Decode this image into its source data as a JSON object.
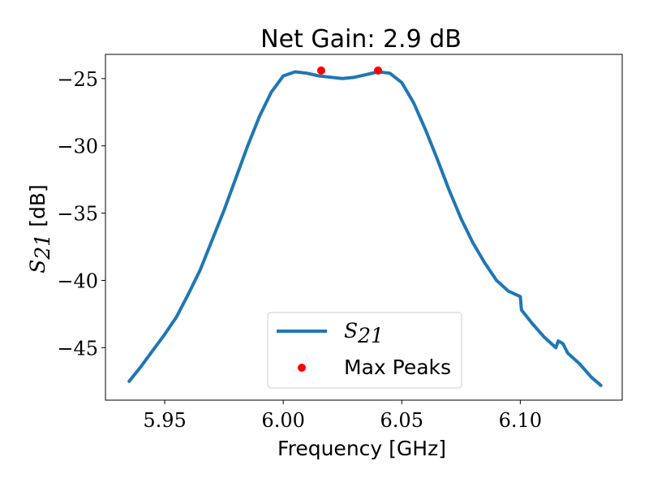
{
  "chart_data": {
    "type": "line",
    "title": "Net Gain: 2.9 dB",
    "xlabel": "Frequency [GHz]",
    "ylabel_symbol": "S",
    "ylabel_subscript": "21",
    "ylabel_unit": "[dB]",
    "xlim": [
      5.925,
      6.143
    ],
    "ylim": [
      -48.9,
      -23.2
    ],
    "x_ticks": [
      5.95,
      6.0,
      6.05,
      6.1
    ],
    "x_tick_labels": [
      "5.95",
      "6.00",
      "6.05",
      "6.10"
    ],
    "y_ticks": [
      -25,
      -30,
      -35,
      -40,
      -45
    ],
    "y_tick_labels": [
      "−25",
      "−30",
      "−35",
      "−40",
      "−45"
    ],
    "grid": false,
    "legend_position": "lower-center",
    "series": [
      {
        "name_symbol": "S",
        "name_subscript": "21",
        "color": "#1f77b4",
        "x": [
          5.935,
          5.94,
          5.945,
          5.95,
          5.955,
          5.96,
          5.965,
          5.97,
          5.975,
          5.98,
          5.985,
          5.99,
          5.995,
          6.0,
          6.005,
          6.01,
          6.015,
          6.02,
          6.025,
          6.03,
          6.035,
          6.04,
          6.045,
          6.05,
          6.055,
          6.06,
          6.065,
          6.07,
          6.075,
          6.08,
          6.085,
          6.09,
          6.095,
          6.1,
          6.1005,
          6.105,
          6.11,
          6.115,
          6.116,
          6.118,
          6.12,
          6.125,
          6.13,
          6.134
        ],
        "y": [
          -47.5,
          -46.4,
          -45.2,
          -44.0,
          -42.7,
          -41.0,
          -39.2,
          -37.0,
          -34.8,
          -32.4,
          -30.0,
          -27.8,
          -26.0,
          -24.8,
          -24.5,
          -24.6,
          -24.8,
          -24.9,
          -25.0,
          -24.9,
          -24.7,
          -24.5,
          -24.6,
          -25.3,
          -26.8,
          -28.8,
          -31.0,
          -33.3,
          -35.4,
          -37.2,
          -38.7,
          -40.0,
          -40.8,
          -41.2,
          -42.2,
          -43.2,
          -44.2,
          -45.0,
          -44.5,
          -44.7,
          -45.4,
          -46.2,
          -47.2,
          -47.8
        ]
      }
    ],
    "peaks": {
      "name": "Max Peaks",
      "color": "#ff0000",
      "x": [
        6.016,
        6.04
      ],
      "y": [
        -24.4,
        -24.4
      ]
    }
  }
}
